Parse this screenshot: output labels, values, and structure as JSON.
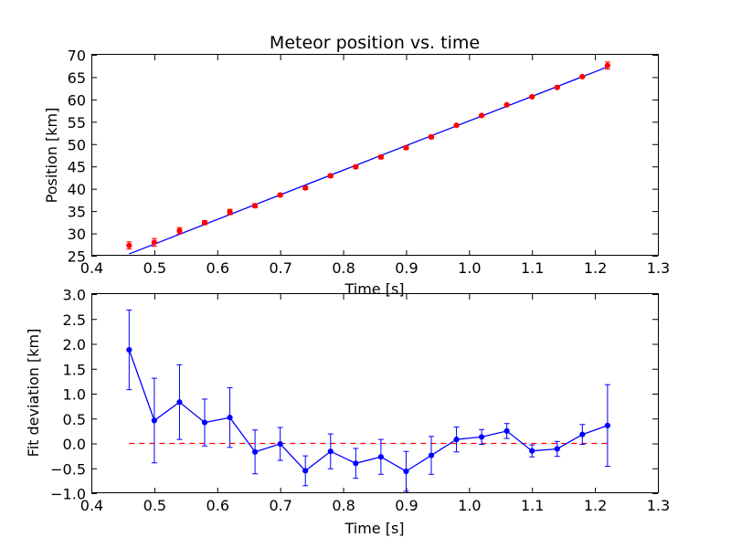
{
  "chart_data": [
    {
      "type": "scatter",
      "title": "Meteor position vs. time",
      "xlabel": "Time [s]",
      "ylabel": "Position [km]",
      "xlim": [
        0.4,
        1.3
      ],
      "ylim": [
        25,
        70
      ],
      "xticks": [
        "0.4",
        "0.5",
        "0.6",
        "0.7",
        "0.8",
        "0.9",
        "1.0",
        "1.1",
        "1.2",
        "1.3"
      ],
      "yticks": [
        "25",
        "30",
        "35",
        "40",
        "45",
        "50",
        "55",
        "60",
        "65",
        "70"
      ],
      "grid": false,
      "points": {
        "marker_color": "#ff0000",
        "x": [
          0.46,
          0.5,
          0.54,
          0.58,
          0.62,
          0.66,
          0.7,
          0.74,
          0.78,
          0.82,
          0.86,
          0.9,
          0.94,
          0.98,
          1.02,
          1.06,
          1.1,
          1.14,
          1.18,
          1.22
        ],
        "y": [
          27.3,
          28.0,
          30.6,
          32.4,
          34.8,
          36.2,
          38.6,
          40.2,
          42.9,
          44.9,
          47.1,
          49.2,
          51.6,
          54.2,
          56.4,
          58.8,
          60.6,
          62.7,
          65.1,
          67.6
        ],
        "yerr": [
          0.8,
          0.85,
          0.7,
          0.45,
          0.6,
          0.45,
          0.35,
          0.35,
          0.35,
          0.3,
          0.35,
          0.4,
          0.38,
          0.25,
          0.15,
          0.15,
          0.1,
          0.15,
          0.2,
          0.8
        ]
      },
      "fit": {
        "color": "#0000ff",
        "x": [
          0.46,
          1.22
        ],
        "y": [
          25.4,
          67.3
        ]
      }
    },
    {
      "type": "line",
      "xlabel": "Time [s]",
      "ylabel": "Fit deviation [km]",
      "xlim": [
        0.4,
        1.3
      ],
      "ylim": [
        -1.0,
        3.0
      ],
      "xticks": [
        "0.4",
        "0.5",
        "0.6",
        "0.7",
        "0.8",
        "0.9",
        "1.0",
        "1.1",
        "1.2",
        "1.3"
      ],
      "yticks": [
        "−1.0",
        "−0.5",
        "0.0",
        "0.5",
        "1.0",
        "1.5",
        "2.0",
        "2.5",
        "3.0"
      ],
      "grid": false,
      "series": {
        "color": "#0000ff",
        "x": [
          0.46,
          0.5,
          0.54,
          0.58,
          0.62,
          0.66,
          0.7,
          0.74,
          0.78,
          0.82,
          0.86,
          0.9,
          0.94,
          0.98,
          1.02,
          1.06,
          1.1,
          1.14,
          1.18,
          1.22
        ],
        "y": [
          1.88,
          0.46,
          0.83,
          0.42,
          0.52,
          -0.17,
          -0.01,
          -0.55,
          -0.16,
          -0.4,
          -0.27,
          -0.56,
          -0.24,
          0.08,
          0.13,
          0.25,
          -0.15,
          -0.11,
          0.18,
          0.36
        ],
        "yerr": [
          0.8,
          0.85,
          0.75,
          0.47,
          0.6,
          0.44,
          0.33,
          0.3,
          0.35,
          0.3,
          0.35,
          0.4,
          0.38,
          0.25,
          0.15,
          0.15,
          0.12,
          0.15,
          0.2,
          0.82
        ]
      },
      "zero_line": {
        "y": 0,
        "color": "#ff0000",
        "style": "dashed",
        "x": [
          0.46,
          1.22
        ]
      }
    }
  ]
}
